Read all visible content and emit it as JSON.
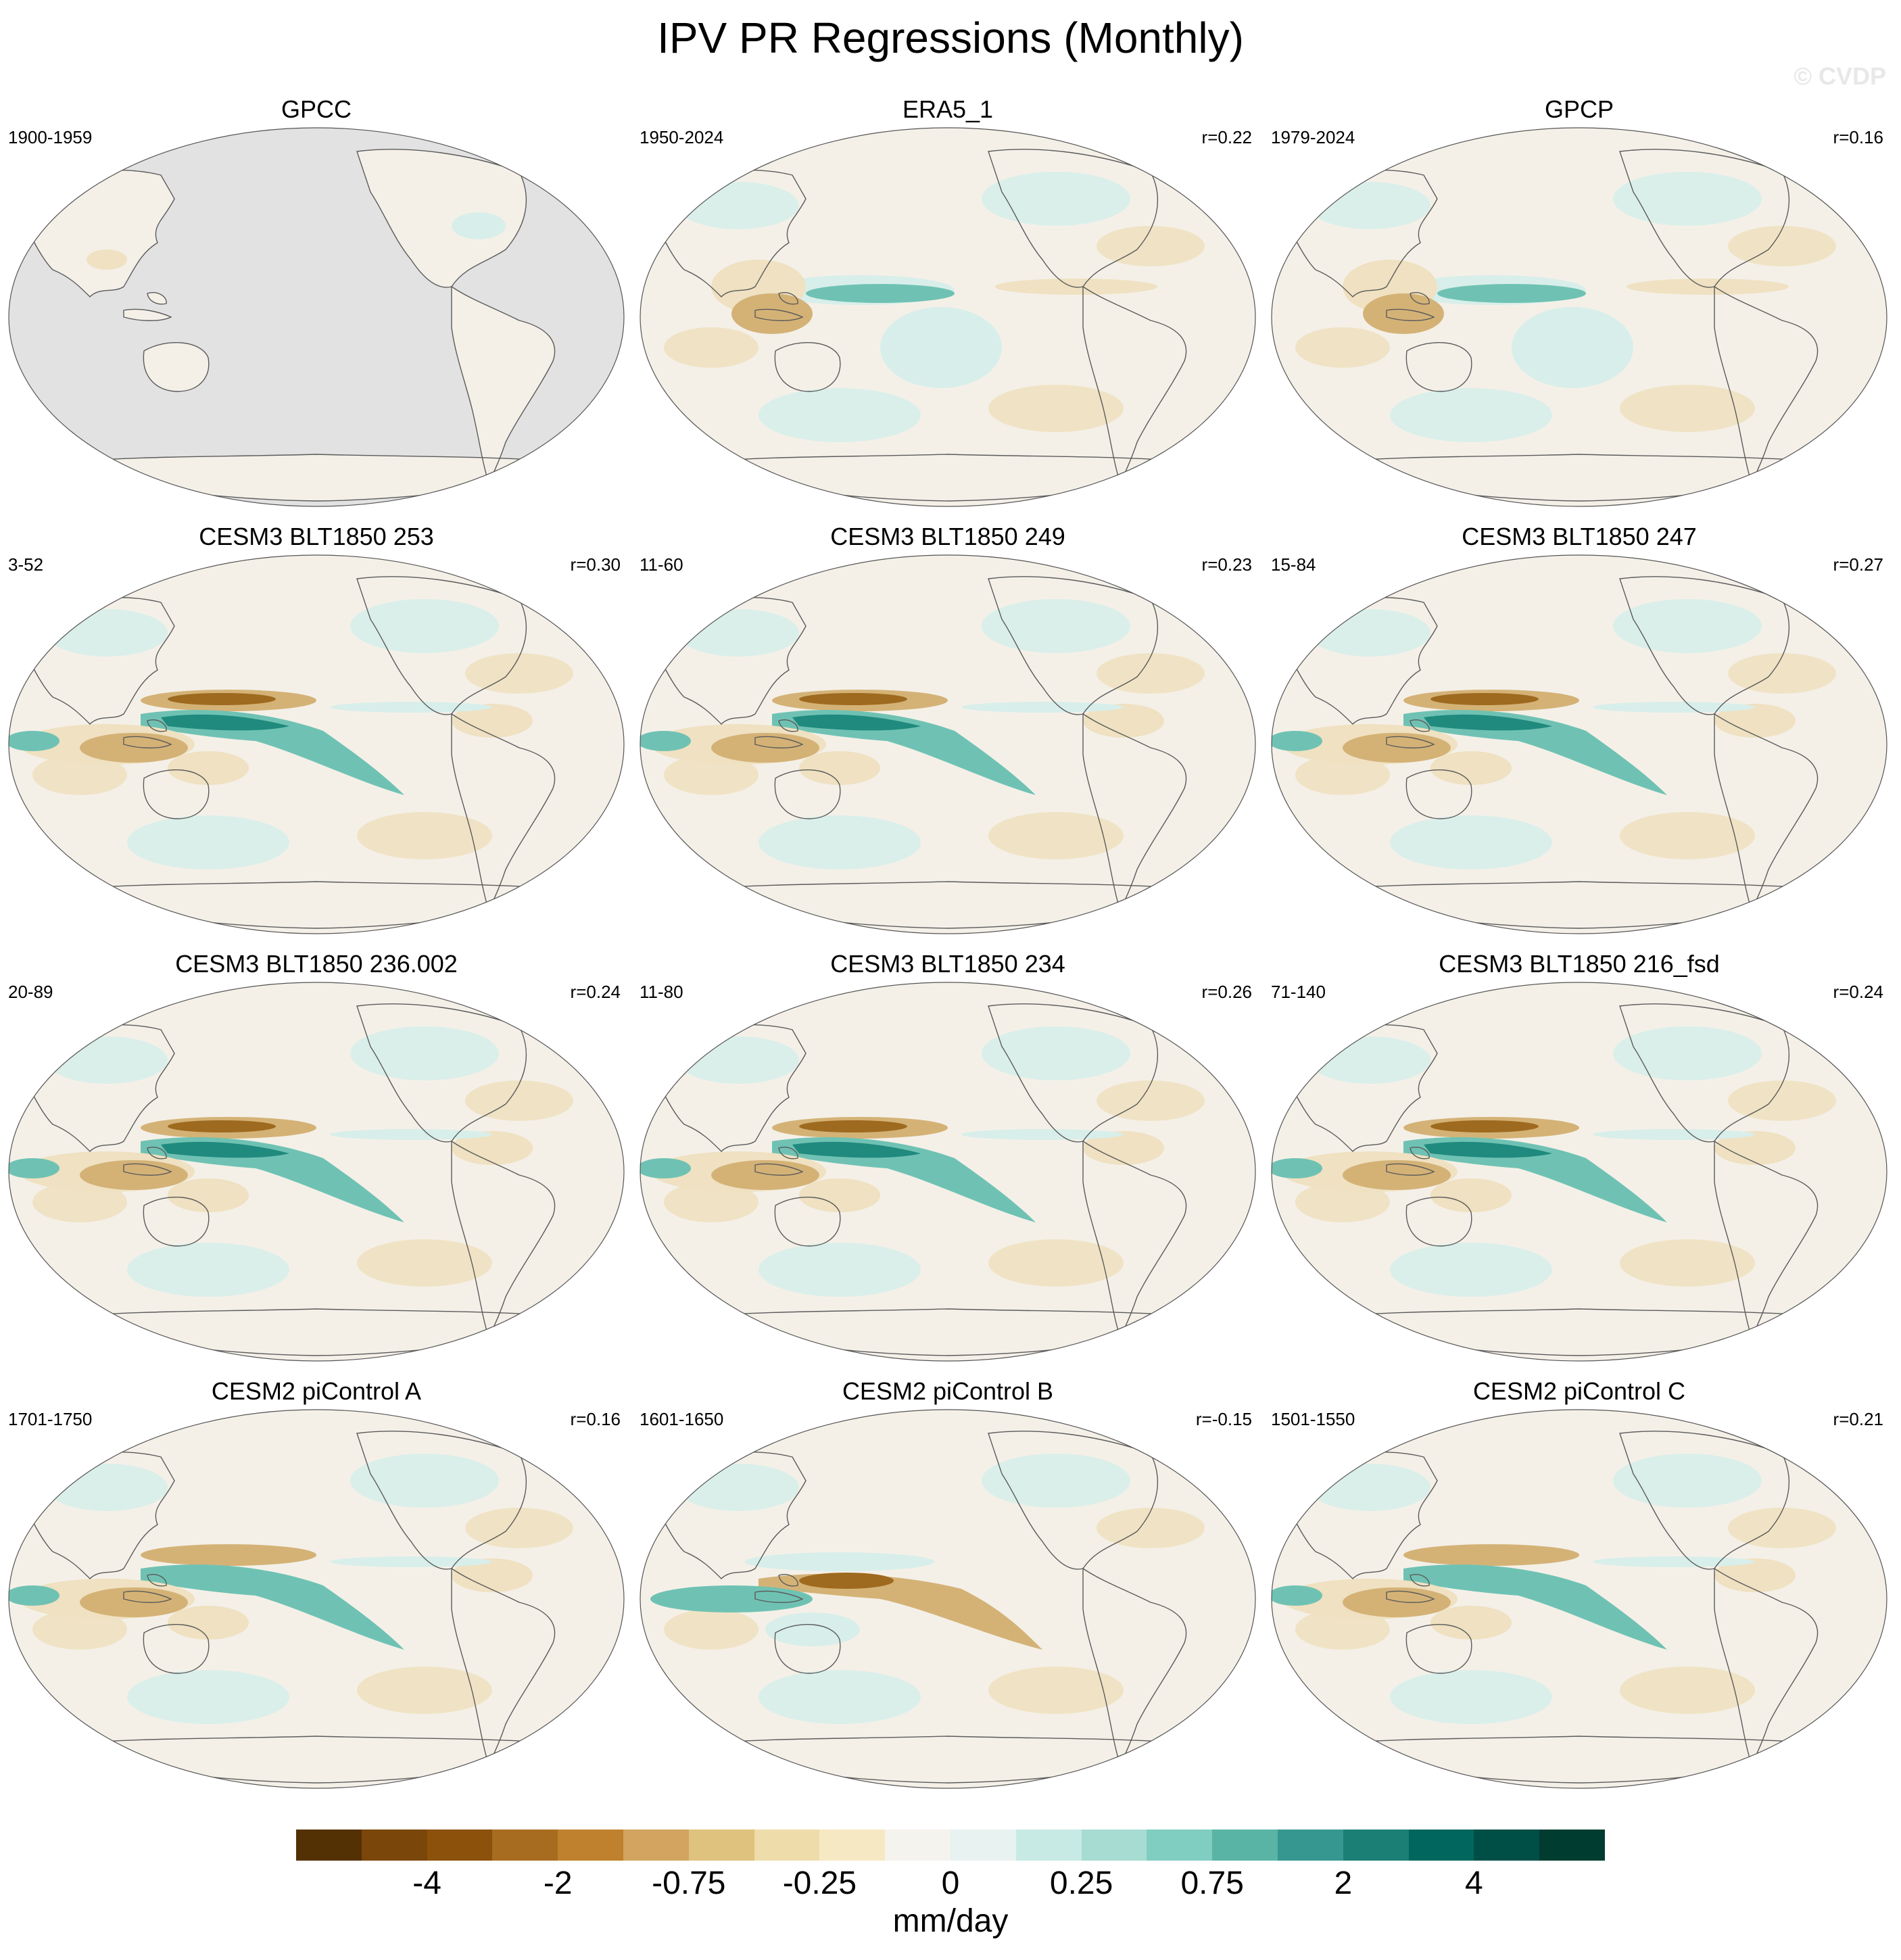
{
  "title": "IPV PR Regressions (Monthly)",
  "watermark": "© CVDP",
  "panels": [
    {
      "title": "GPCC",
      "years": "1900-1959",
      "r": "",
      "style": "gpcc"
    },
    {
      "title": "ERA5_1",
      "years": "1950-2024",
      "r": "r=0.22",
      "style": "weak"
    },
    {
      "title": "GPCP",
      "years": "1979-2024",
      "r": "r=0.16",
      "style": "weak"
    },
    {
      "title": "CESM3 BLT1850 253",
      "years": "3-52",
      "r": "r=0.30",
      "style": "strong"
    },
    {
      "title": "CESM3 BLT1850 249",
      "years": "11-60",
      "r": "r=0.23",
      "style": "strong"
    },
    {
      "title": "CESM3 BLT1850 247",
      "years": "15-84",
      "r": "r=0.27",
      "style": "strong"
    },
    {
      "title": "CESM3 BLT1850 236.002",
      "years": "20-89",
      "r": "r=0.24",
      "style": "strong"
    },
    {
      "title": "CESM3 BLT1850 234",
      "years": "11-80",
      "r": "r=0.26",
      "style": "strong"
    },
    {
      "title": "CESM3 BLT1850 216_fsd",
      "years": "71-140",
      "r": "r=0.24",
      "style": "strong"
    },
    {
      "title": "CESM2 piControl A",
      "years": "1701-1750",
      "r": "r=0.16",
      "style": "moderate"
    },
    {
      "title": "CESM2 piControl B",
      "years": "1601-1650",
      "r": "r=-0.15",
      "style": "reversed"
    },
    {
      "title": "CESM2 piControl C",
      "years": "1501-1550",
      "r": "r=0.21",
      "style": "moderate"
    }
  ],
  "colorbar": {
    "units": "mm/day",
    "labels": [
      "-4",
      "-2",
      "-0.75",
      "-0.25",
      "0",
      "0.25",
      "0.75",
      "2",
      "4"
    ],
    "colors": [
      "#543005",
      "#7a4609",
      "#8c510a",
      "#a86c20",
      "#bf812d",
      "#d2a45f",
      "#dfc27d",
      "#eedcab",
      "#f6e8c3",
      "#f5f3ee",
      "#e8f2f0",
      "#c7eae5",
      "#a6dcd2",
      "#80cdc1",
      "#5ab4a5",
      "#35978f",
      "#1c7f75",
      "#01665e",
      "#004f46",
      "#003c30"
    ]
  },
  "colors": {
    "land_missing": "#e2e2e2",
    "coast": "#5b5b5b",
    "dry_strong": "#9e6a1f",
    "dry_mid": "#d4b276",
    "dry_light": "#efe1c1",
    "wet_strong": "#1f8a7d",
    "wet_mid": "#6fc2b3",
    "wet_light": "#d8eeea",
    "base": "#f4f0e8"
  }
}
